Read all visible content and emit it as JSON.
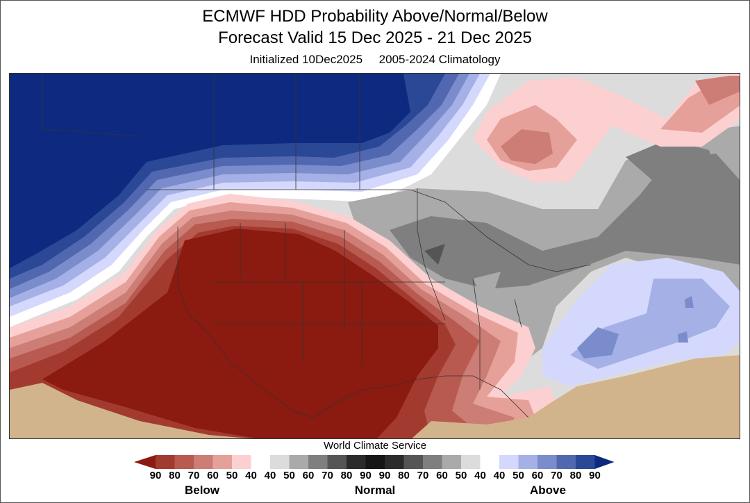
{
  "title": {
    "line1": "ECMWF HDD Probability Above/Normal/Below",
    "line2": "Forecast Valid 15 Dec 2025 - 21 Dec 2025",
    "line3": "Initialized 10Dec2025     2005-2024 Climatology"
  },
  "credit": "World Climate Service",
  "legend": {
    "tick_labels": [
      "90",
      "80",
      "70",
      "60",
      "50",
      "40",
      "40",
      "50",
      "60",
      "70",
      "80",
      "90",
      "90",
      "80",
      "70",
      "60",
      "50",
      "40",
      "40",
      "50",
      "60",
      "70",
      "80",
      "90"
    ],
    "categories": [
      "Below",
      "Normal",
      "Above"
    ],
    "arrow_colors": {
      "low": "#8b1a10",
      "high": "#0d2a80"
    },
    "colors": [
      "#a33a30",
      "#b85a50",
      "#cc7d75",
      "#e6a09a",
      "#fcd0d0",
      "#ffffff",
      "#dcdcdc",
      "#aaaaaa",
      "#7f7f7f",
      "#555555",
      "#2b2b2b",
      "#161616",
      "#2b2b2b",
      "#555555",
      "#7f7f7f",
      "#aaaaaa",
      "#dcdcdc",
      "#ffffff",
      "#d4d8fc",
      "#a4b0e6",
      "#7a8ccc",
      "#5168b0",
      "#2a4896"
    ]
  },
  "map_colors": {
    "land_mask": "#d2b48c",
    "background": "#dcdcdc"
  }
}
